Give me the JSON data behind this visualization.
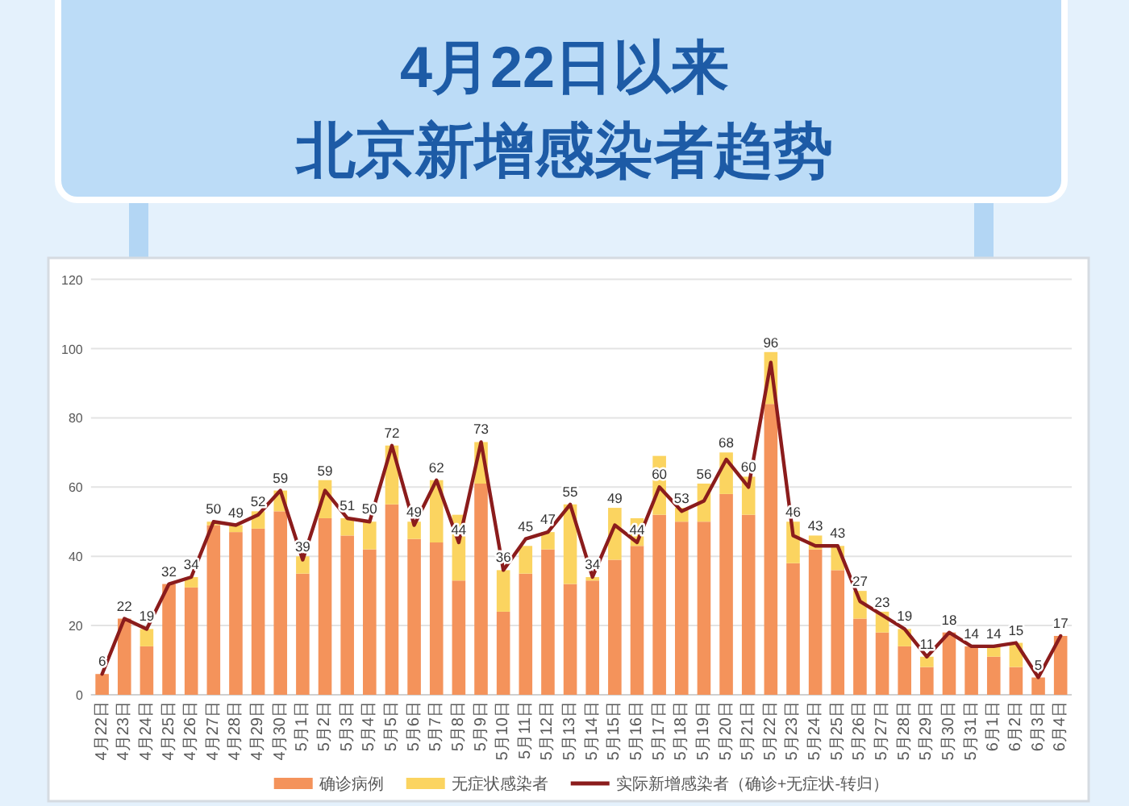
{
  "chart_data": {
    "type": "bar",
    "title": "4月22日以来",
    "subtitle": "北京新增感染者趋势",
    "categories": [
      "4月22日",
      "4月23日",
      "4月24日",
      "4月25日",
      "4月26日",
      "4月27日",
      "4月28日",
      "4月29日",
      "4月30日",
      "5月1日",
      "5月2日",
      "5月3日",
      "5月4日",
      "5月5日",
      "5月6日",
      "5月7日",
      "5月8日",
      "5月9日",
      "5月10日",
      "5月11日",
      "5月12日",
      "5月13日",
      "5月14日",
      "5月15日",
      "5月16日",
      "5月17日",
      "5月18日",
      "5月19日",
      "5月20日",
      "5月21日",
      "5月22日",
      "5月23日",
      "5月24日",
      "5月25日",
      "5月26日",
      "5月27日",
      "5月28日",
      "5月29日",
      "5月30日",
      "5月31日",
      "6月1日",
      "6月2日",
      "6月3日",
      "6月4日"
    ],
    "stacked": true,
    "series": [
      {
        "name": "确诊病例",
        "color": "#f4935b",
        "values": [
          6,
          22,
          14,
          32,
          31,
          49,
          47,
          48,
          53,
          35,
          51,
          46,
          42,
          55,
          45,
          44,
          33,
          61,
          24,
          35,
          42,
          32,
          33,
          39,
          43,
          52,
          50,
          50,
          58,
          52,
          84,
          38,
          42,
          36,
          22,
          18,
          14,
          8,
          18,
          14,
          11,
          8,
          5,
          17
        ]
      },
      {
        "name": "无症状感染者",
        "color": "#fbd460",
        "values": [
          0,
          0,
          5,
          0,
          3,
          1,
          2,
          5,
          6,
          5,
          11,
          5,
          8,
          17,
          5,
          18,
          19,
          12,
          12,
          8,
          5,
          23,
          1,
          15,
          8,
          17,
          4,
          11,
          12,
          11,
          15,
          12,
          4,
          7,
          8,
          6,
          5,
          3,
          0,
          0,
          3,
          7,
          0,
          0
        ]
      },
      {
        "name": "实际新增感染者（确诊+无症状-转归）",
        "type": "line",
        "color": "#8b1c1c",
        "data_labels": true,
        "values": [
          6,
          22,
          19,
          32,
          34,
          50,
          49,
          52,
          59,
          39,
          59,
          51,
          50,
          72,
          49,
          62,
          44,
          73,
          36,
          45,
          47,
          55,
          34,
          49,
          44,
          60,
          53,
          56,
          68,
          60,
          96,
          46,
          43,
          43,
          27,
          23,
          19,
          11,
          18,
          14,
          14,
          15,
          5,
          17
        ]
      }
    ],
    "ylim": [
      0,
      120
    ],
    "yticks": [
      0,
      20,
      40,
      60,
      80,
      100,
      120
    ],
    "grid": "y",
    "legend": "bottom"
  }
}
